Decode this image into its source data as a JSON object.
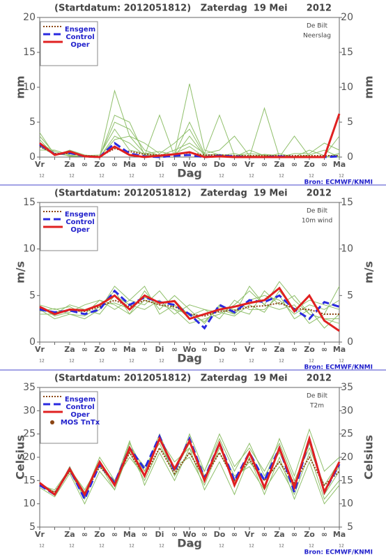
{
  "chart_data": [
    {
      "type": "line",
      "title": "(Startdatum: 2012051812)   Zaterdag  19 Mei      2012",
      "location": "De Bilt",
      "variable": "Neerslag",
      "ylabel": "mm",
      "xlabel": "Dag",
      "source": "Bron: ECMWF/KNMI",
      "categories": [
        "Vr",
        null,
        "Za",
        "∞",
        "Zo",
        "∞",
        "Ma",
        "∞",
        "Di",
        "∞",
        "Wo",
        "∞",
        "Do",
        "∞",
        "Vr",
        "∞",
        "Za",
        "∞",
        "Zo",
        "∞",
        "Ma"
      ],
      "x_sublabels": [
        "12",
        "12",
        "12",
        "12",
        "12",
        "12",
        "12",
        "12",
        "12",
        "12",
        "12"
      ],
      "ylim": [
        0,
        20
      ],
      "yticks": [
        0,
        5,
        10,
        15,
        20
      ],
      "member_color": "#8fbf6a",
      "members": [
        [
          3,
          0.5,
          0.2,
          0.1,
          0,
          9.5,
          3,
          0.5,
          0.3,
          0.5,
          10.5,
          1,
          0.3,
          0,
          0,
          0,
          0,
          0,
          0,
          0,
          0.5
        ],
        [
          2.5,
          0.2,
          1,
          0.3,
          0.1,
          5,
          4,
          1,
          0.2,
          1,
          2,
          0.5,
          1,
          3,
          0.2,
          0,
          0.5,
          0,
          0.3,
          1,
          0
        ],
        [
          1,
          1,
          0.3,
          0,
          0,
          3,
          2,
          0.2,
          6,
          0.1,
          3,
          0.2,
          0,
          0,
          0,
          7,
          0,
          0,
          0,
          0,
          0.5
        ],
        [
          3.5,
          0.3,
          0.5,
          0.2,
          0.3,
          4,
          1,
          0.5,
          0.8,
          0.3,
          5,
          0.5,
          6,
          0.2,
          0.5,
          0.3,
          0,
          3,
          0.1,
          0,
          0
        ],
        [
          2,
          0.8,
          0.1,
          0.1,
          0,
          6,
          5,
          0.3,
          0.2,
          0.5,
          1.5,
          0,
          0.2,
          0.5,
          0,
          0.4,
          0.2,
          0,
          1,
          0.2,
          3
        ],
        [
          1.5,
          0.3,
          0.6,
          0,
          0,
          2.5,
          3,
          2,
          0.5,
          2,
          4,
          0.3,
          0.4,
          0,
          1,
          0.2,
          0,
          0.5,
          0.5,
          2,
          1
        ]
      ],
      "series": [
        {
          "name": "Ensgem",
          "color": "#8b4513",
          "style": "dotted",
          "values": [
            1.5,
            0.5,
            0.5,
            0.2,
            0.1,
            1.2,
            0.8,
            0.4,
            0.3,
            0.4,
            0.6,
            0.3,
            0.3,
            0.2,
            0.2,
            0.2,
            0.2,
            0.2,
            0.2,
            0.2,
            0.2
          ]
        },
        {
          "name": "Control",
          "color": "#2a2ae0",
          "style": "dashed",
          "values": [
            1.8,
            0.4,
            0.6,
            0.1,
            0,
            2,
            0.5,
            0.1,
            0,
            0.2,
            0.3,
            0,
            0.2,
            0.1,
            0,
            0,
            0.1,
            0,
            0,
            0,
            0.1
          ]
        },
        {
          "name": "Oper",
          "color": "#e02020",
          "style": "solid",
          "values": [
            2,
            0.3,
            0.8,
            0.1,
            0,
            1.5,
            0.3,
            0,
            0.2,
            0.4,
            0.7,
            0,
            0.1,
            0,
            0,
            0,
            0,
            0,
            0,
            0,
            6.2
          ]
        }
      ]
    },
    {
      "type": "line",
      "title": "(Startdatum: 2012051812)   Zaterdag  19 Mei      2012",
      "location": "De Bilt",
      "variable": "10m wind",
      "ylabel": "m/s",
      "xlabel": "Dag",
      "source": "Bron: ECMWF/KNMI",
      "categories": [
        "Vr",
        null,
        "Za",
        "∞",
        "Zo",
        "∞",
        "Ma",
        "∞",
        "Di",
        "∞",
        "Wo",
        "∞",
        "Do",
        "∞",
        "Vr",
        "∞",
        "Za",
        "∞",
        "Zo",
        "∞",
        "Ma"
      ],
      "x_sublabels": [
        "12",
        "12",
        "12",
        "12",
        "12",
        "12",
        "12",
        "12",
        "12",
        "12",
        "12"
      ],
      "ylim": [
        0,
        15
      ],
      "yticks": [
        0,
        5,
        10,
        15
      ],
      "member_color": "#8fbf6a",
      "members": [
        [
          3.5,
          2.5,
          3,
          2.5,
          3.5,
          6,
          4.5,
          4,
          5.5,
          3.5,
          2,
          2.5,
          3,
          4,
          5.5,
          4,
          6.5,
          4.5,
          3,
          2.5,
          2
        ],
        [
          4,
          3.5,
          3.8,
          3,
          4.5,
          4,
          3,
          5.5,
          3.5,
          5,
          3.5,
          2,
          4,
          3,
          4.5,
          5,
          4.5,
          3,
          4,
          3.5,
          4.5
        ],
        [
          3,
          3,
          4,
          3.5,
          3,
          5,
          4,
          3.5,
          4.5,
          3,
          4,
          3.5,
          2.5,
          4.5,
          3.5,
          3.5,
          5,
          2.5,
          3.5,
          1.5,
          3
        ],
        [
          3.8,
          2.8,
          3.2,
          4,
          4.5,
          3.5,
          4.5,
          6,
          3,
          4,
          2.5,
          3,
          3.5,
          3,
          6,
          4,
          3.5,
          4,
          2,
          3,
          6
        ],
        [
          3.3,
          3.6,
          3,
          2.8,
          3.8,
          5.5,
          3,
          4.5,
          4,
          3.5,
          3,
          2.2,
          3.8,
          3.5,
          3,
          5.5,
          4,
          5,
          3,
          2.5,
          2.5
        ],
        [
          3.6,
          3.2,
          3.5,
          3.3,
          4,
          4.2,
          3.6,
          4.8,
          4.2,
          4.5,
          2.8,
          3.5,
          3.2,
          2.8,
          4,
          3.2,
          5.5,
          3.5,
          4.5,
          4,
          3.5
        ]
      ],
      "series": [
        {
          "name": "Ensgem",
          "color": "#8b4513",
          "style": "dotted",
          "values": [
            3.6,
            3.2,
            3.4,
            3.3,
            3.8,
            4.5,
            3.8,
            4.5,
            4,
            3.8,
            3,
            2.8,
            3.3,
            3.4,
            3.8,
            3.9,
            4.2,
            3.6,
            3.5,
            3,
            3
          ]
        },
        {
          "name": "Control",
          "color": "#2a2ae0",
          "style": "dashed",
          "values": [
            3.5,
            3.2,
            3.4,
            3,
            3.5,
            5.5,
            4,
            4.8,
            4.3,
            4,
            3,
            1.5,
            4,
            3.2,
            4.5,
            4.3,
            5,
            3.5,
            2.5,
            4.3,
            3.8
          ]
        },
        {
          "name": "Oper",
          "color": "#e02020",
          "style": "solid",
          "values": [
            3.8,
            3,
            3.5,
            3.4,
            4,
            5,
            3.5,
            5,
            4.2,
            4.4,
            2.5,
            3,
            3.5,
            3.8,
            4.2,
            4.5,
            5.8,
            3.3,
            5,
            2.3,
            1.2
          ]
        }
      ]
    },
    {
      "type": "line",
      "title": "(Startdatum: 2012051812)   Zaterdag  19 Mei      2012",
      "location": "De Bilt",
      "variable": "T2m",
      "ylabel": "Celsius",
      "xlabel": "Dag",
      "source": "Bron: ECMWF/KNMI",
      "categories": [
        "Vr",
        null,
        "Za",
        "∞",
        "Zo",
        "∞",
        "Ma",
        "∞",
        "Di",
        "∞",
        "Wo",
        "∞",
        "Do",
        "∞",
        "Vr",
        "∞",
        "Za",
        "∞",
        "Zo",
        "∞",
        "Ma"
      ],
      "x_sublabels": [
        "12",
        "12",
        "12",
        "12",
        "12",
        "12",
        "12",
        "12",
        "12",
        "12",
        "12"
      ],
      "ylim": [
        5,
        35
      ],
      "yticks": [
        5,
        10,
        15,
        20,
        25,
        30,
        35
      ],
      "member_color": "#8fbf6a",
      "members": [
        [
          14,
          12,
          17,
          11,
          19,
          14,
          23,
          17,
          25,
          17,
          23,
          16,
          21,
          15,
          19,
          15,
          24,
          16,
          26,
          17,
          20
        ],
        [
          14.5,
          12.5,
          17.5,
          12.5,
          18,
          15,
          21,
          15,
          22,
          18,
          20,
          14,
          22,
          16,
          18,
          13,
          18,
          12,
          21,
          11,
          15
        ],
        [
          13.5,
          11.5,
          16.5,
          10,
          17,
          13,
          22,
          18,
          23,
          16,
          25,
          17,
          24,
          17,
          23,
          16,
          21,
          14,
          23,
          13,
          18
        ],
        [
          14,
          12,
          18,
          12,
          20,
          15,
          20,
          16,
          24,
          19,
          22,
          13,
          19,
          12,
          20,
          12,
          20,
          11,
          19,
          10,
          14
        ],
        [
          14.5,
          12,
          17,
          11.5,
          19,
          14.5,
          23.5,
          14,
          21,
          15,
          22,
          17,
          25,
          18,
          22,
          17,
          23,
          15,
          22,
          14,
          19
        ],
        [
          14,
          13,
          17.5,
          13,
          18.5,
          13,
          21.5,
          17,
          24,
          16,
          21,
          15,
          23,
          14,
          21,
          15,
          19,
          13,
          24,
          12,
          17
        ]
      ],
      "series": [
        {
          "name": "Ensgem",
          "color": "#8b4513",
          "style": "dotted",
          "values": [
            14,
            12.5,
            17,
            12,
            18,
            14.5,
            21,
            16,
            22,
            16.5,
            21,
            15.5,
            21,
            15,
            19.5,
            15,
            19,
            14.5,
            20,
            14,
            17
          ]
        },
        {
          "name": "Control",
          "color": "#2a2ae0",
          "style": "dashed",
          "values": [
            14,
            12,
            17.5,
            11,
            18.5,
            14.5,
            22,
            17.5,
            24.5,
            17,
            24,
            15.5,
            23,
            15,
            21,
            15,
            22,
            12.5,
            24,
            12.5,
            18.5
          ]
        },
        {
          "name": "Oper",
          "color": "#e02020",
          "style": "solid",
          "values": [
            14.5,
            12,
            17.5,
            12,
            19,
            14,
            22,
            16,
            24,
            17.5,
            23.5,
            15,
            23,
            14,
            21,
            13.5,
            22,
            13.5,
            24,
            12.5,
            19
          ]
        },
        {
          "name": "MOS TnTx",
          "color": "#8b4513",
          "style": "dots",
          "values": [
            null,
            null,
            null,
            null,
            null,
            null,
            null,
            null,
            null,
            null,
            null,
            null,
            null,
            null,
            null,
            null,
            null,
            null,
            null,
            null,
            null
          ]
        }
      ]
    }
  ]
}
